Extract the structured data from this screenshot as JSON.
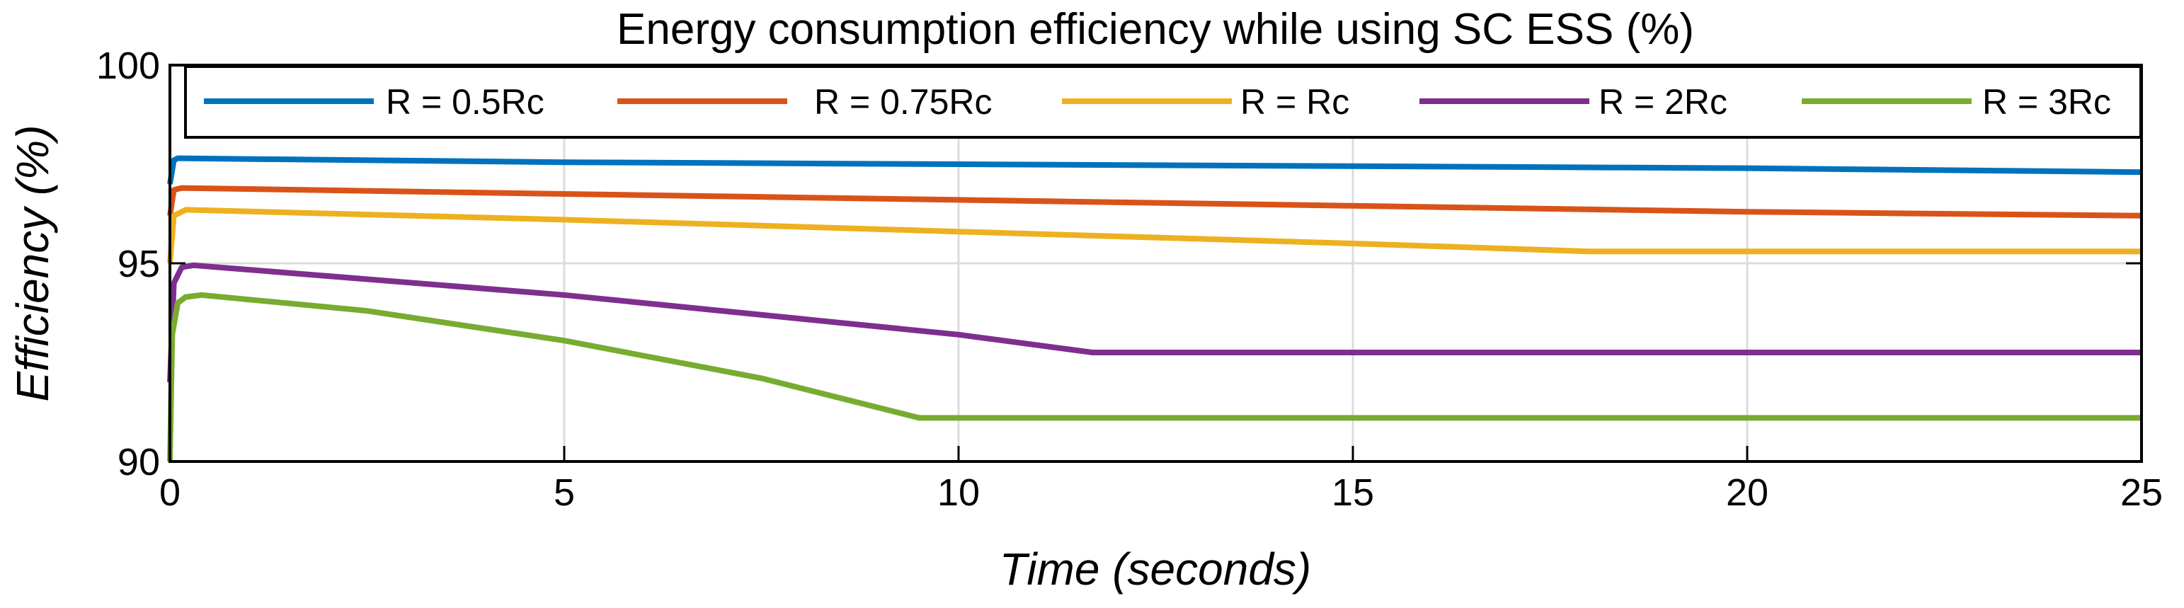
{
  "chart_data": {
    "type": "line",
    "title": "Energy consumption efficiency while using SC ESS (%)",
    "xlabel": "Time (seconds)",
    "ylabel": "Efficiency (%)",
    "xlim": [
      0,
      25
    ],
    "ylim": [
      90,
      100
    ],
    "xticks": [
      "0",
      "5",
      "10",
      "15",
      "20",
      "25"
    ],
    "xtick_values": [
      0,
      5,
      10,
      15,
      20,
      25
    ],
    "yticks": [
      "90",
      "95",
      "100"
    ],
    "ytick_values": [
      90,
      95,
      100
    ],
    "grid": true,
    "legend_position": "top",
    "series": [
      {
        "name": "R = 0.5Rc",
        "color": "#0072BD",
        "x": [
          0,
          0.05,
          0.1,
          5,
          10,
          15,
          20,
          25
        ],
        "y": [
          97.0,
          97.6,
          97.65,
          97.55,
          97.5,
          97.45,
          97.4,
          97.3
        ]
      },
      {
        "name": "R = 0.75Rc",
        "color": "#D95319",
        "x": [
          0,
          0.05,
          0.15,
          5,
          10,
          15,
          20,
          25
        ],
        "y": [
          96.2,
          96.85,
          96.9,
          96.75,
          96.6,
          96.45,
          96.3,
          96.2
        ]
      },
      {
        "name": "R = Rc",
        "color": "#EDB120",
        "x": [
          0,
          0.05,
          0.2,
          5,
          10,
          15,
          18,
          25
        ],
        "y": [
          95.0,
          96.2,
          96.35,
          96.1,
          95.8,
          95.5,
          95.3,
          95.3
        ]
      },
      {
        "name": "R = 2Rc",
        "color": "#7E2F8E",
        "x": [
          0,
          0.05,
          0.15,
          0.3,
          5,
          10,
          11.7,
          25
        ],
        "y": [
          92.0,
          94.5,
          94.9,
          94.95,
          94.2,
          93.2,
          92.75,
          92.75
        ]
      },
      {
        "name": "R = 3Rc",
        "color": "#77AC30",
        "x": [
          0,
          0.03,
          0.1,
          0.2,
          0.4,
          2.5,
          5,
          7.5,
          9.5,
          25
        ],
        "y": [
          90.0,
          93.2,
          94.0,
          94.15,
          94.2,
          93.8,
          93.05,
          92.1,
          91.1,
          91.1
        ]
      }
    ]
  }
}
